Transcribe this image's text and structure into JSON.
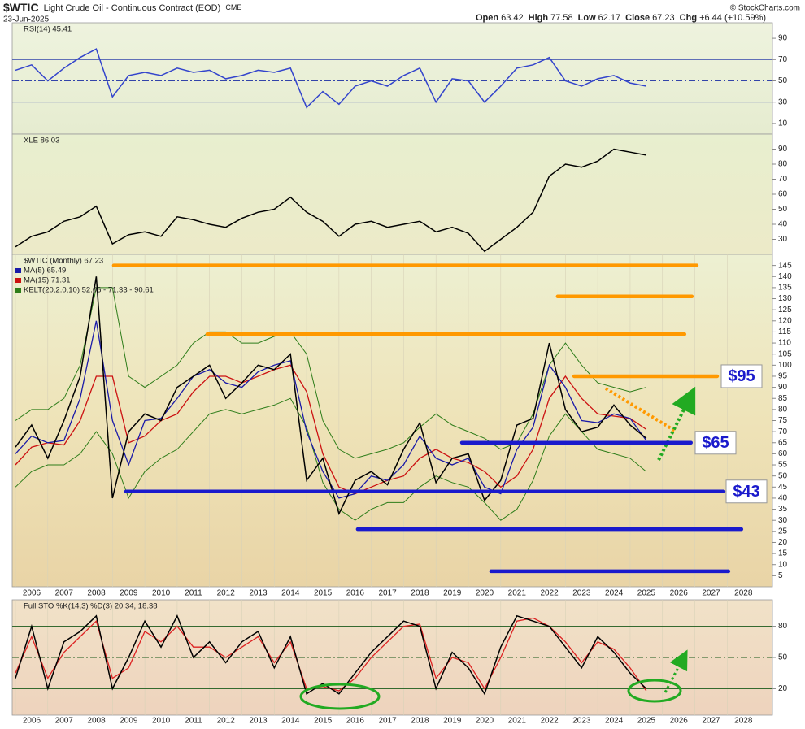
{
  "header": {
    "symbol": "$WTIC",
    "title": "Light Crude Oil - Continuous Contract (EOD)",
    "exchange": "CME",
    "date": "23-Jun-2025",
    "stats": [
      {
        "label": "Open",
        "value": "63.42"
      },
      {
        "label": "High",
        "value": "77.58"
      },
      {
        "label": "Low",
        "value": "62.17"
      },
      {
        "label": "Close",
        "value": "67.23"
      },
      {
        "label": "Chg",
        "value": "+6.44 (+10.59%)"
      }
    ],
    "source": "© StockCharts.com"
  },
  "chart_data": [
    {
      "type": "line",
      "title": "RSI(14) 45.41",
      "xlim": [
        2005.9,
        2029.4
      ],
      "ylim": [
        0,
        100
      ],
      "yticks": [
        10,
        30,
        50,
        70,
        90
      ],
      "ref_lines": [
        30,
        50,
        70
      ],
      "x": [
        2006.0,
        2006.5,
        2007.0,
        2007.5,
        2008.0,
        2008.5,
        2009.0,
        2009.5,
        2010.0,
        2010.5,
        2011.0,
        2011.5,
        2012.0,
        2012.5,
        2013.0,
        2013.5,
        2014.0,
        2014.5,
        2015.0,
        2015.5,
        2016.0,
        2016.5,
        2017.0,
        2017.5,
        2018.0,
        2018.5,
        2019.0,
        2019.5,
        2020.0,
        2020.5,
        2021.0,
        2021.5,
        2022.0,
        2022.5,
        2023.0,
        2023.5,
        2024.0,
        2024.5,
        2025.0,
        2025.5
      ],
      "series": [
        {
          "color": "#3344cc",
          "values": [
            60,
            65,
            50,
            62,
            72,
            80,
            35,
            55,
            58,
            55,
            62,
            58,
            60,
            52,
            55,
            60,
            58,
            62,
            25,
            40,
            28,
            45,
            50,
            45,
            55,
            62,
            30,
            52,
            50,
            30,
            45,
            62,
            65,
            72,
            50,
            45,
            52,
            55,
            48,
            45
          ]
        }
      ]
    },
    {
      "type": "line",
      "title": "XLE 86.03",
      "xlim": [
        2005.9,
        2029.4
      ],
      "ylim": [
        20,
        100
      ],
      "yticks": [
        30,
        40,
        50,
        60,
        70,
        80,
        90
      ],
      "x": [
        2006.0,
        2006.5,
        2007.0,
        2007.5,
        2008.0,
        2008.5,
        2009.0,
        2009.5,
        2010.0,
        2010.5,
        2011.0,
        2011.5,
        2012.0,
        2012.5,
        2013.0,
        2013.5,
        2014.0,
        2014.5,
        2015.0,
        2015.5,
        2016.0,
        2016.5,
        2017.0,
        2017.5,
        2018.0,
        2018.5,
        2019.0,
        2019.5,
        2020.0,
        2020.5,
        2021.0,
        2021.5,
        2022.0,
        2022.5,
        2023.0,
        2023.5,
        2024.0,
        2024.5,
        2025.0,
        2025.5
      ],
      "series": [
        {
          "color": "#000000",
          "values": [
            25,
            32,
            35,
            42,
            45,
            52,
            27,
            33,
            35,
            32,
            45,
            43,
            40,
            38,
            44,
            48,
            50,
            58,
            48,
            42,
            32,
            40,
            42,
            38,
            40,
            42,
            35,
            38,
            34,
            22,
            30,
            38,
            48,
            72,
            80,
            78,
            82,
            90,
            88,
            86
          ]
        }
      ]
    },
    {
      "type": "line",
      "title": "$WTIC (Monthly) 67.23",
      "xlim": [
        2005.9,
        2029.4
      ],
      "ylim": [
        0,
        150
      ],
      "yticks": [
        5,
        10,
        15,
        20,
        25,
        30,
        35,
        40,
        45,
        50,
        55,
        60,
        65,
        70,
        75,
        80,
        85,
        90,
        95,
        100,
        105,
        110,
        115,
        120,
        125,
        130,
        135,
        140,
        145
      ],
      "xticks": [
        2006,
        2007,
        2008,
        2009,
        2010,
        2011,
        2012,
        2013,
        2014,
        2015,
        2016,
        2017,
        2018,
        2019,
        2020,
        2021,
        2022,
        2023,
        2024,
        2025,
        2026,
        2027,
        2028
      ],
      "x": [
        2006.0,
        2006.5,
        2007.0,
        2007.5,
        2008.0,
        2008.5,
        2009.0,
        2009.5,
        2010.0,
        2010.5,
        2011.0,
        2011.5,
        2012.0,
        2012.5,
        2013.0,
        2013.5,
        2014.0,
        2014.5,
        2015.0,
        2015.5,
        2016.0,
        2016.5,
        2017.0,
        2017.5,
        2018.0,
        2018.5,
        2019.0,
        2019.5,
        2020.0,
        2020.5,
        2021.0,
        2021.5,
        2022.0,
        2022.5,
        2023.0,
        2023.5,
        2024.0,
        2024.5,
        2025.0,
        2025.5
      ],
      "series": [
        {
          "color": "#000000",
          "values": [
            63,
            73,
            58,
            75,
            95,
            140,
            40,
            70,
            78,
            75,
            90,
            95,
            100,
            85,
            92,
            100,
            98,
            105,
            48,
            58,
            33,
            48,
            52,
            46,
            62,
            74,
            47,
            58,
            60,
            39,
            48,
            73,
            76,
            110,
            80,
            70,
            72,
            82,
            73,
            67
          ]
        },
        {
          "name": "MA(5) 65.49",
          "color": "#1a1aa8",
          "values": [
            60,
            68,
            65,
            66,
            85,
            120,
            75,
            55,
            75,
            76,
            85,
            95,
            98,
            92,
            90,
            97,
            100,
            102,
            70,
            52,
            40,
            42,
            50,
            48,
            55,
            68,
            58,
            55,
            58,
            45,
            42,
            62,
            72,
            100,
            90,
            75,
            74,
            78,
            76,
            66
          ]
        },
        {
          "name": "MA(15) 71.31",
          "color": "#cc1111",
          "values": [
            55,
            63,
            65,
            64,
            75,
            95,
            95,
            65,
            68,
            75,
            78,
            88,
            95,
            95,
            92,
            95,
            98,
            100,
            88,
            60,
            45,
            42,
            45,
            48,
            50,
            58,
            62,
            58,
            56,
            52,
            45,
            50,
            62,
            85,
            95,
            85,
            78,
            77,
            76,
            71
          ]
        }
      ],
      "kelt": {
        "name": "KELT(20,2.0,10) 52.06 - 71.33 - 90.61",
        "color": "#2e7d1a",
        "upper": [
          75,
          80,
          80,
          85,
          100,
          135,
          135,
          95,
          90,
          95,
          100,
          110,
          115,
          115,
          110,
          110,
          113,
          115,
          105,
          75,
          62,
          58,
          60,
          62,
          65,
          72,
          78,
          73,
          70,
          67,
          62,
          65,
          78,
          100,
          110,
          100,
          92,
          90,
          88,
          90
        ],
        "lower": [
          45,
          52,
          55,
          55,
          60,
          70,
          60,
          40,
          52,
          58,
          62,
          70,
          78,
          80,
          78,
          80,
          82,
          85,
          72,
          47,
          35,
          30,
          35,
          38,
          38,
          45,
          50,
          47,
          45,
          38,
          30,
          35,
          48,
          68,
          78,
          70,
          62,
          60,
          58,
          52
        ]
      },
      "hlines": [
        {
          "value": 145,
          "from": 2009.04,
          "to": 2027.06,
          "color": "#ff9900"
        },
        {
          "value": 131,
          "from": 2022.76,
          "to": 2026.91,
          "color": "#ff9900"
        },
        {
          "value": 114,
          "from": 2011.93,
          "to": 2026.68,
          "color": "#ff9900"
        },
        {
          "value": 95,
          "from": 2023.27,
          "to": 2027.69,
          "color": "#ff9900",
          "label": "$95"
        },
        {
          "value": 65,
          "from": 2019.8,
          "to": 2026.88,
          "color": "#1a1acc",
          "label": "$65"
        },
        {
          "value": 43,
          "from": 2009.42,
          "to": 2027.89,
          "color": "#1a1acc",
          "label": "$43"
        },
        {
          "value": 26,
          "from": 2016.58,
          "to": 2028.44,
          "color": "#1a1acc"
        },
        {
          "value": 7,
          "from": 2020.7,
          "to": 2028.04,
          "color": "#1a1acc"
        }
      ]
    },
    {
      "type": "line",
      "title": "Full STO %K(14,3) %D(3) 20.34, 18.38",
      "xlim": [
        2005.9,
        2029.4
      ],
      "ylim": [
        0,
        100
      ],
      "yticks": [
        20,
        50,
        80
      ],
      "ref_lines": [
        20,
        50,
        80
      ],
      "xticks": [
        2006,
        2007,
        2008,
        2009,
        2010,
        2011,
        2012,
        2013,
        2014,
        2015,
        2016,
        2017,
        2018,
        2019,
        2020,
        2021,
        2022,
        2023,
        2024,
        2025,
        2026,
        2027,
        2028
      ],
      "x": [
        2006.0,
        2006.5,
        2007.0,
        2007.5,
        2008.0,
        2008.5,
        2009.0,
        2009.5,
        2010.0,
        2010.5,
        2011.0,
        2011.5,
        2012.0,
        2012.5,
        2013.0,
        2013.5,
        2014.0,
        2014.5,
        2015.0,
        2015.5,
        2016.0,
        2016.5,
        2017.0,
        2017.5,
        2018.0,
        2018.5,
        2019.0,
        2019.5,
        2020.0,
        2020.5,
        2021.0,
        2021.5,
        2022.0,
        2022.5,
        2023.0,
        2023.5,
        2024.0,
        2024.5,
        2025.0,
        2025.5
      ],
      "series": [
        {
          "color": "#000000",
          "values": [
            30,
            80,
            20,
            65,
            75,
            90,
            20,
            50,
            85,
            60,
            90,
            50,
            65,
            45,
            65,
            75,
            40,
            70,
            15,
            25,
            15,
            35,
            55,
            70,
            85,
            80,
            20,
            55,
            40,
            15,
            60,
            90,
            85,
            80,
            60,
            40,
            70,
            55,
            35,
            20
          ]
        },
        {
          "color": "#dd2222",
          "values": [
            35,
            70,
            30,
            55,
            70,
            85,
            30,
            40,
            75,
            65,
            80,
            60,
            60,
            50,
            60,
            70,
            45,
            65,
            20,
            22,
            18,
            30,
            50,
            65,
            80,
            82,
            30,
            50,
            45,
            20,
            50,
            85,
            88,
            80,
            65,
            45,
            65,
            58,
            40,
            18
          ]
        }
      ]
    }
  ]
}
